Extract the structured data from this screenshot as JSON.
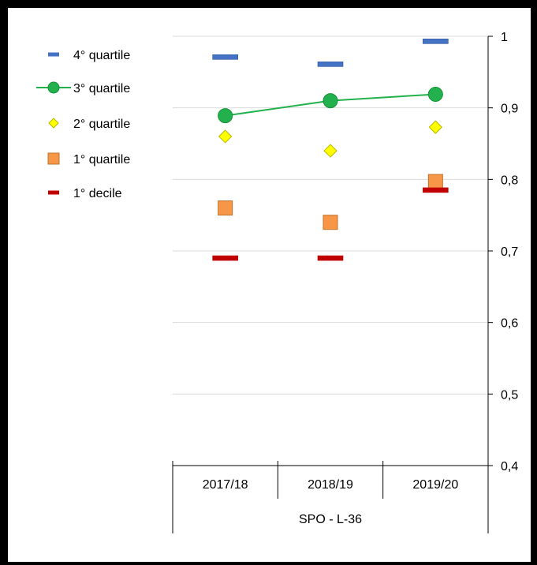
{
  "chart_data": {
    "type": "line",
    "title": "",
    "xlabel": "",
    "ylabel": "",
    "group_label": "SPO - L-36",
    "categories": [
      "2017/18",
      "2018/19",
      "2019/20"
    ],
    "ylim": [
      0.4,
      1.0
    ],
    "yticks": [
      0.4,
      0.5,
      0.6,
      0.7,
      0.8,
      0.9,
      1.0
    ],
    "ytick_labels": [
      "0,4",
      "0,5",
      "0,6",
      "0,7",
      "0,8",
      "0,9",
      "1"
    ],
    "y_axis_side": "right",
    "grid": true,
    "legend_position": "left",
    "series": [
      {
        "name": "4° quartile",
        "values": [
          0.971,
          0.961,
          0.993
        ],
        "marker": "dash",
        "color": "#4472C4",
        "line": false
      },
      {
        "name": "3° quartile",
        "values": [
          0.889,
          0.91,
          0.919
        ],
        "marker": "circle",
        "color": "#22B14C",
        "line": true
      },
      {
        "name": "2° quartile",
        "values": [
          0.86,
          0.84,
          0.873
        ],
        "marker": "diamond",
        "color": "#FFFF00",
        "line": false
      },
      {
        "name": "1° quartile",
        "values": [
          0.76,
          0.74,
          0.797
        ],
        "marker": "square",
        "color": "#F79646",
        "line": false
      },
      {
        "name": "1° decile",
        "values": [
          0.69,
          0.69,
          0.785
        ],
        "marker": "dash",
        "color": "#C00000",
        "line": false
      }
    ]
  }
}
